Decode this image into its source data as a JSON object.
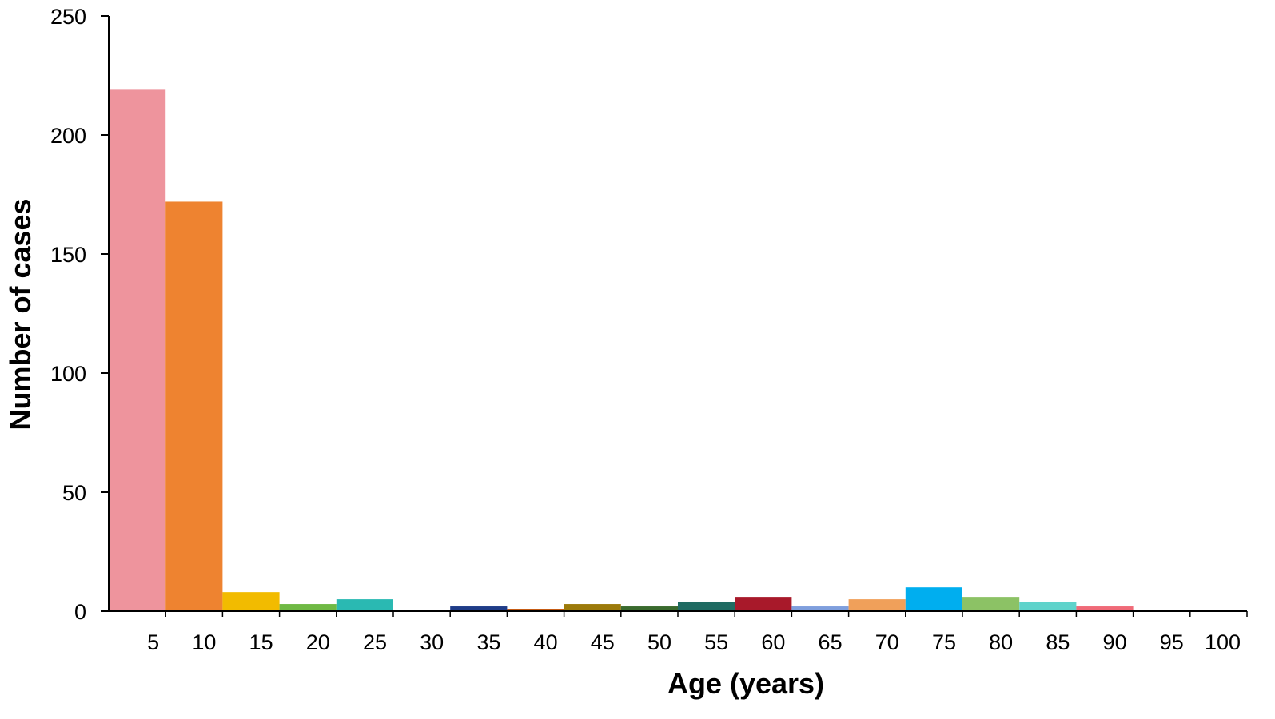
{
  "chart_data": {
    "type": "bar",
    "title": "",
    "xlabel": "Age (years)",
    "ylabel": "Number of cases",
    "ylim": [
      0,
      250
    ],
    "yticks": [
      "0",
      "50",
      "100",
      "150",
      "200",
      "250"
    ],
    "categories": [
      "5",
      "10",
      "15",
      "20",
      "25",
      "30",
      "35",
      "40",
      "45",
      "50",
      "55",
      "60",
      "65",
      "70",
      "75",
      "80",
      "85",
      "90",
      "95",
      "100"
    ],
    "values": [
      219,
      172,
      8,
      3,
      5,
      0,
      2,
      1,
      3,
      2,
      4,
      6,
      2,
      5,
      10,
      6,
      4,
      2,
      0,
      0
    ],
    "colors": [
      "#ee949d",
      "#ee8330",
      "#f2bb00",
      "#6fb944",
      "#2ab9b2",
      "#ffffff",
      "#1f3c88",
      "#c55a11",
      "#9c7a0a",
      "#3a6a2e",
      "#1f6b62",
      "#a8192a",
      "#7f9fdd",
      "#f0a05a",
      "#00aeef",
      "#8cc265",
      "#5fd3cb",
      "#f06a78",
      "#ffffff",
      "#ffffff"
    ],
    "grid": false,
    "legend": "none"
  }
}
